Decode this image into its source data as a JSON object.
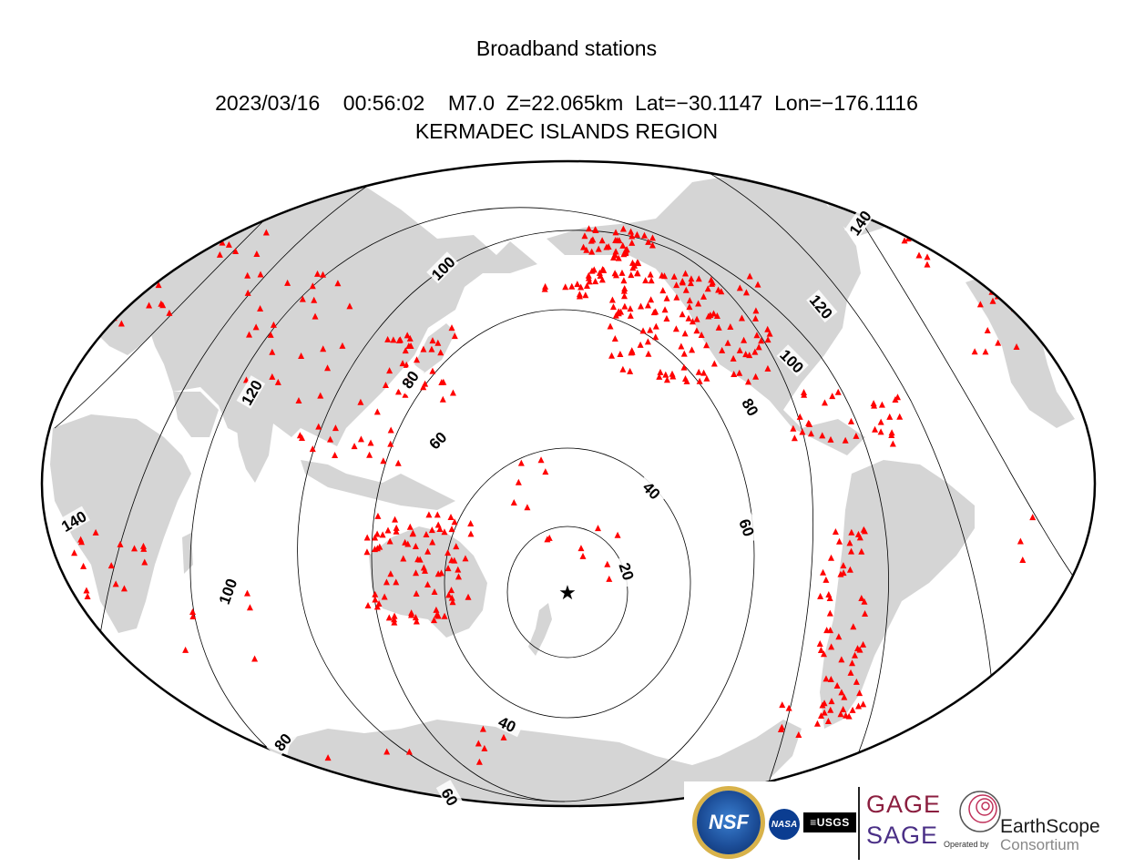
{
  "title": "Broadband stations",
  "event_line": "2023/03/16    00:56:02    M7.0  Z=22.065km  Lat=−30.1147  Lon=−176.1116",
  "region": "KERMADEC ISLANDS REGION",
  "epicenter_marker": "star",
  "contours": [
    {
      "label": "20"
    },
    {
      "label": "40"
    },
    {
      "label": "60"
    },
    {
      "label": "80"
    },
    {
      "label": "100"
    },
    {
      "label": "120"
    },
    {
      "label": "140"
    }
  ],
  "colors": {
    "land": "#d5d5d5",
    "station": "#ff0000",
    "contour": "#000000",
    "ocean": "#ffffff"
  },
  "station_icon": "red-triangle",
  "logos": {
    "nsf": "NSF",
    "nasa": "NASA",
    "usgs": "≡USGS",
    "gage": "GAGE",
    "sage": "SAGE",
    "operated_by": "Operated by",
    "earthscope": "EarthScope",
    "consortium": "Consortium"
  }
}
